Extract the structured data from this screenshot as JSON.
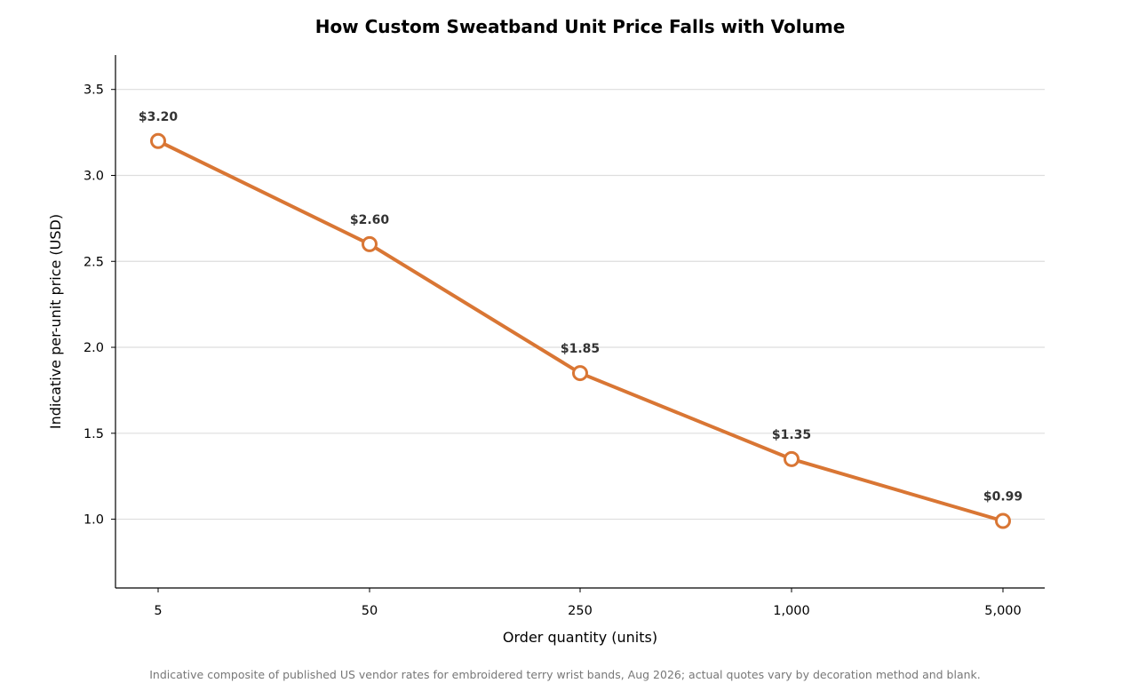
{
  "chart_data": {
    "type": "line",
    "title": "How Custom Sweatband Unit Price Falls with Volume",
    "xlabel": "Order quantity (units)",
    "ylabel": "Indicative per-unit price (USD)",
    "categories": [
      "5",
      "50",
      "250",
      "1,000",
      "5,000"
    ],
    "series": [
      {
        "values": [
          3.2,
          2.6,
          1.85,
          1.35,
          0.99
        ],
        "labels": [
          "$3.20",
          "$2.60",
          "$1.85",
          "$1.35",
          "$0.99"
        ],
        "color": "#d97634"
      }
    ],
    "ylim": [
      0.6,
      3.7
    ],
    "yticks": [
      1.0,
      1.5,
      2.0,
      2.5,
      3.0,
      3.5
    ],
    "ytick_labels": [
      "1.0",
      "1.5",
      "2.0",
      "2.5",
      "3.0",
      "3.5"
    ],
    "grid": "horizontal",
    "grid_color": "#dddddd",
    "marker": "hollow-circle"
  },
  "source_note": "Indicative composite of published US vendor rates for embroidered terry wrist bands, Aug 2026; actual quotes vary by decoration method and blank."
}
